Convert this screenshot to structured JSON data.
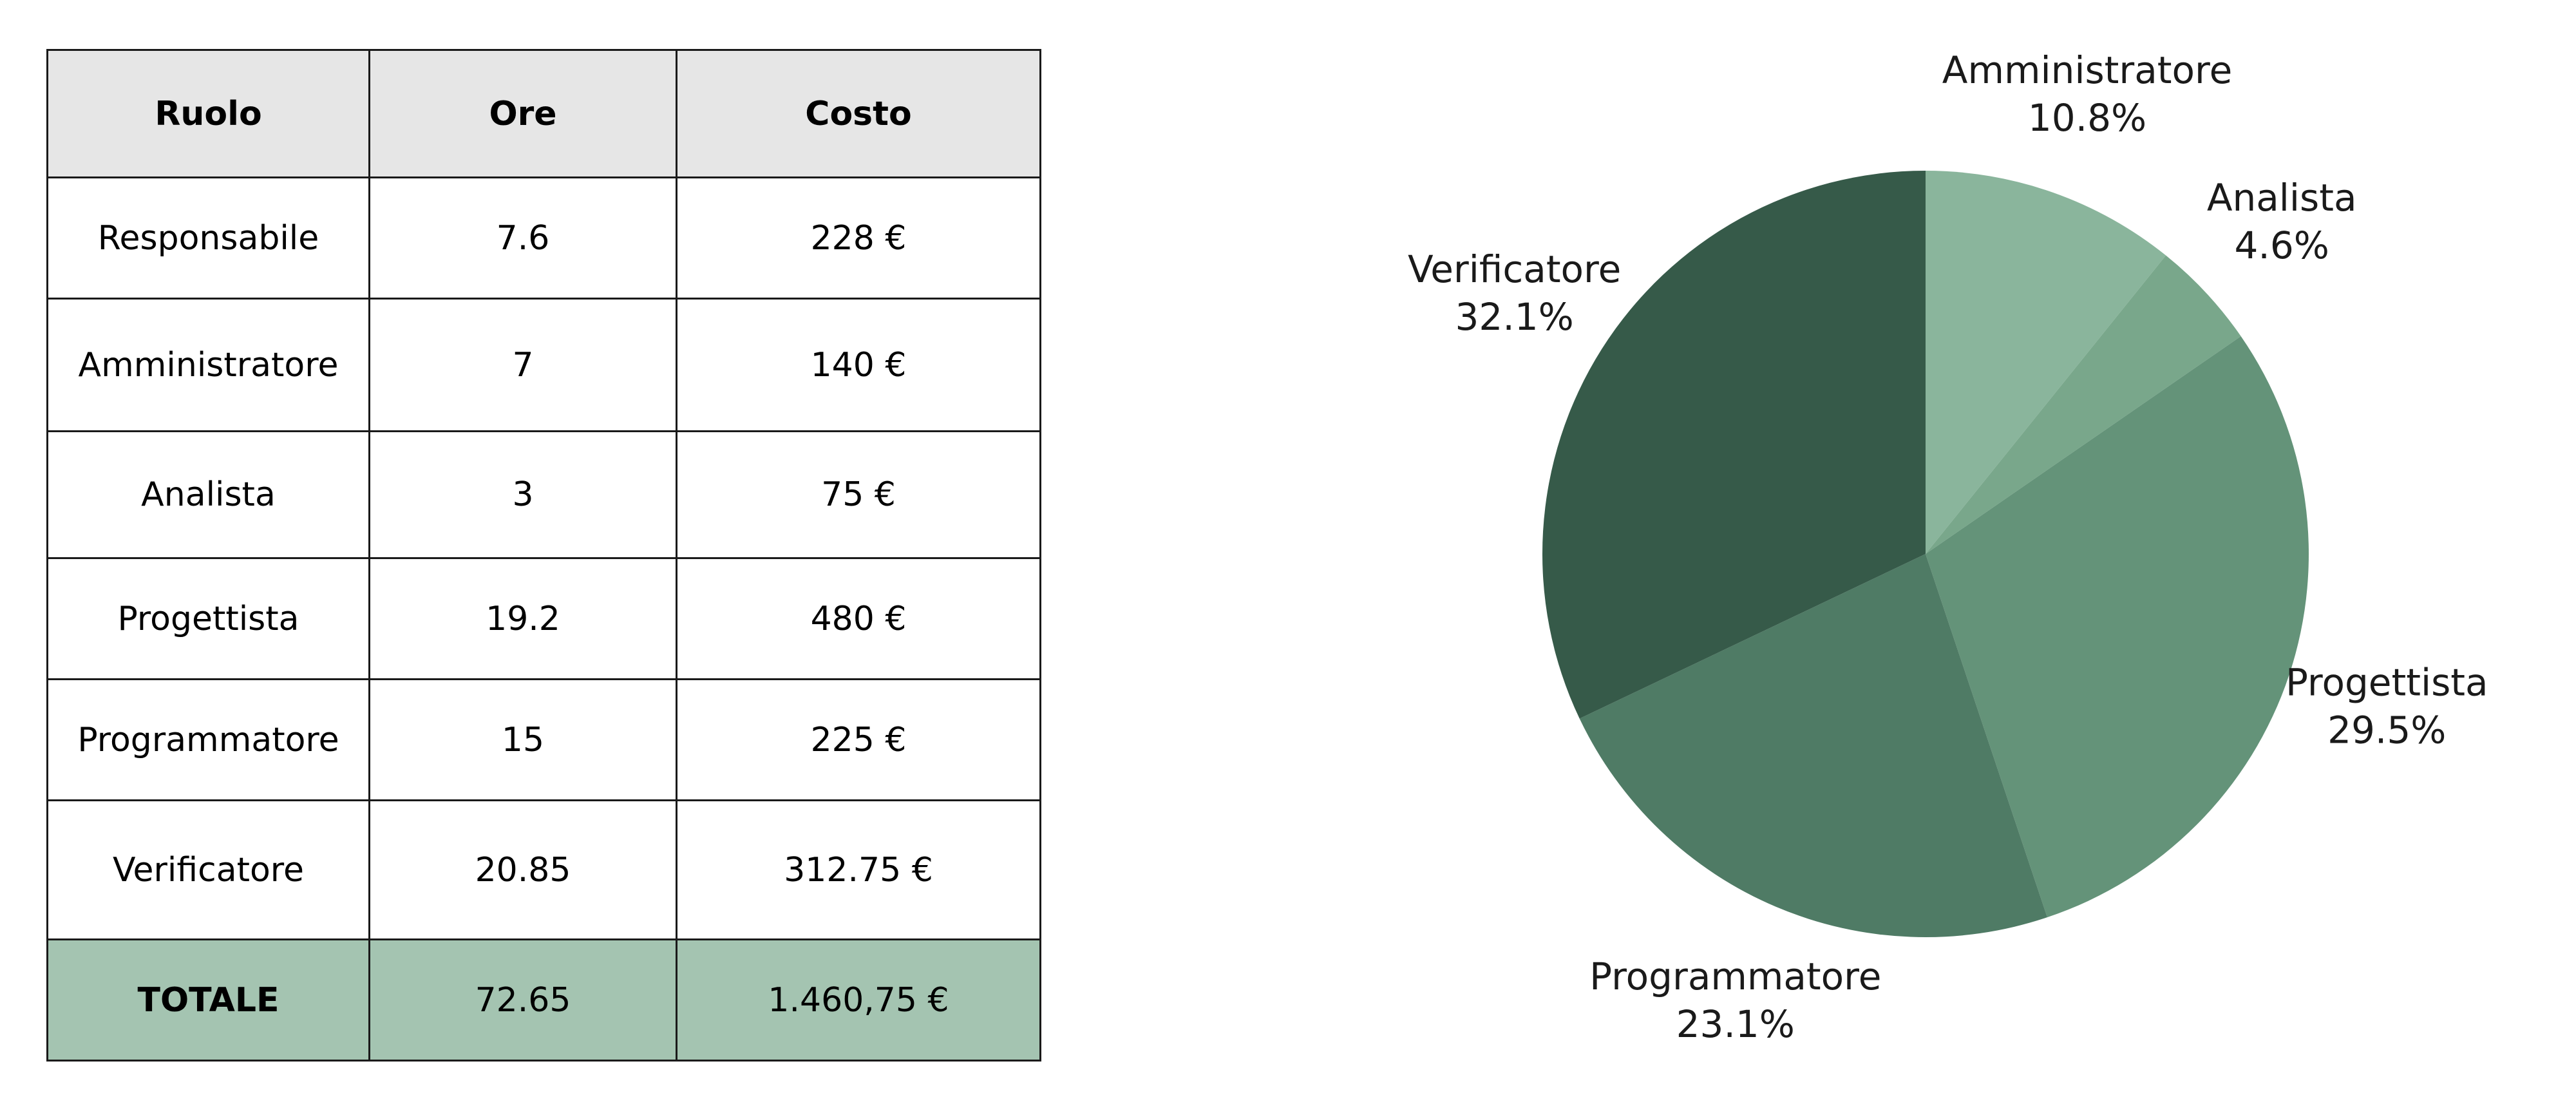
{
  "table": {
    "headers": [
      "Ruolo",
      "Ore",
      "Costo"
    ],
    "rows": [
      [
        "Responsabile",
        "7.6",
        "228 €"
      ],
      [
        "Amministratore",
        "7",
        "140 €"
      ],
      [
        "Analista",
        "3",
        "75 €"
      ],
      [
        "Progettista",
        "19.2",
        "480 €"
      ],
      [
        "Programmatore",
        "15",
        "225 €"
      ],
      [
        "Verificatore",
        "20.85",
        "312.75 €"
      ]
    ],
    "total": [
      "TOTALE",
      "72.65",
      "1.460,75 €"
    ]
  },
  "chart_data": {
    "type": "pie",
    "categories": [
      "Amministratore",
      "Analista",
      "Progettista",
      "Programmatore",
      "Verificatore"
    ],
    "values": [
      10.8,
      4.6,
      29.5,
      23.1,
      32.1
    ],
    "labels": [
      "10.8%",
      "4.6%",
      "29.5%",
      "23.1%",
      "32.1%"
    ],
    "colors": [
      "#8ab59c",
      "#79a78b",
      "#649379",
      "#4f7b65",
      "#365a49"
    ],
    "start_angle": "12 o'clock",
    "direction": "clockwise"
  }
}
